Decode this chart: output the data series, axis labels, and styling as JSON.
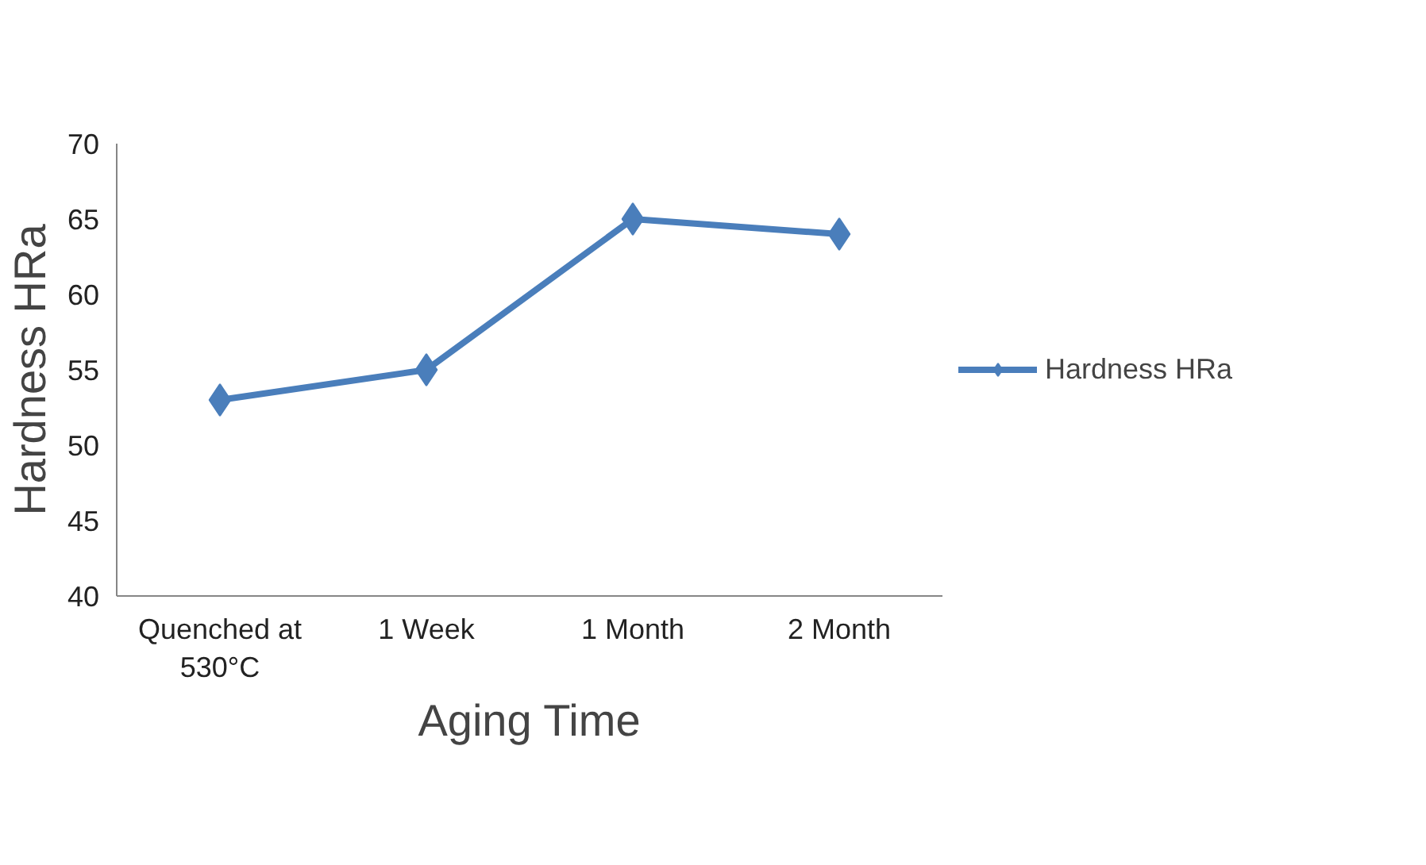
{
  "chart_data": {
    "type": "line",
    "xlabel": "Aging Time",
    "ylabel": "Hardness HRa",
    "categories": [
      "Quenched at 530°C",
      "1 Week",
      "1 Month",
      "2 Month"
    ],
    "series": [
      {
        "name": "Hardness HRa",
        "color": "#4a7ebb",
        "values": [
          53,
          55,
          65,
          64
        ]
      }
    ],
    "ylim": [
      40,
      70
    ],
    "yticks": [
      40,
      45,
      50,
      55,
      60,
      65,
      70
    ],
    "grid": false,
    "legend": "right",
    "marker": "diamond",
    "line_style": "solid"
  }
}
